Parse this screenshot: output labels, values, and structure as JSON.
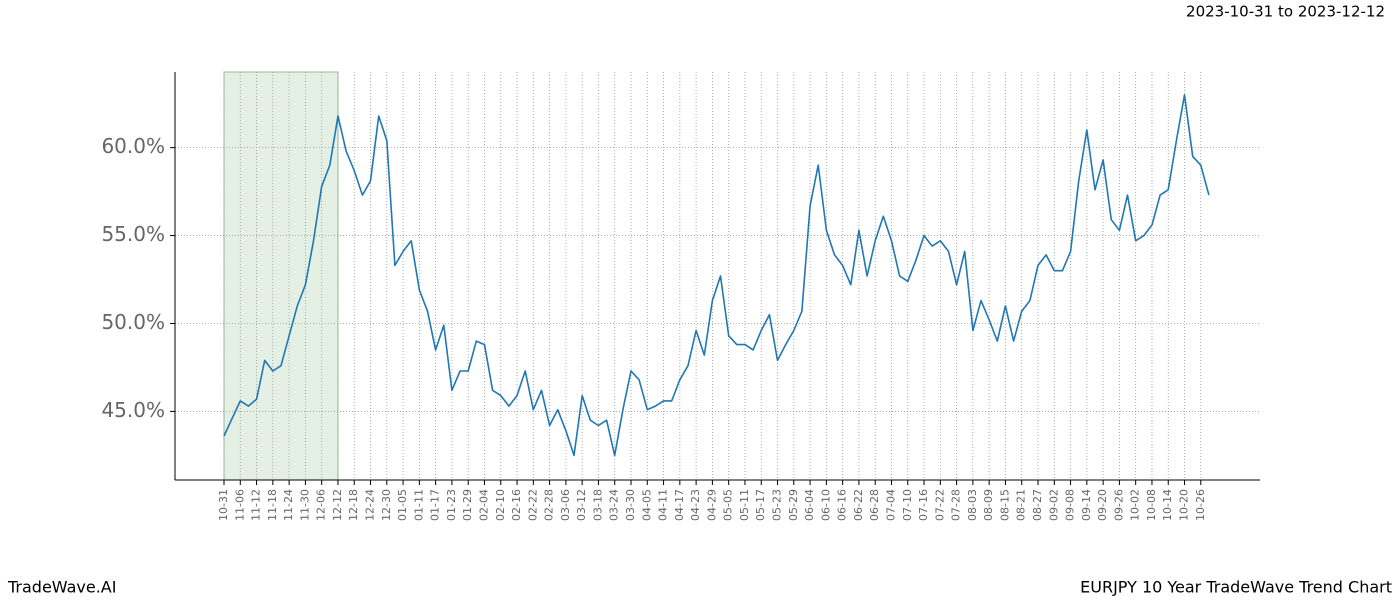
{
  "chart_data": {
    "type": "line",
    "title": "2023-10-31 to 2023-12-12",
    "footer_left": "TradeWave.AI",
    "footer_right": "EURJPY 10 Year TradeWave Trend Chart",
    "categories": [
      "10-31",
      null,
      "11-06",
      null,
      "11-12",
      null,
      "11-18",
      null,
      "11-24",
      null,
      "11-30",
      null,
      "12-06",
      null,
      "12-12",
      null,
      "12-18",
      null,
      "12-24",
      null,
      "12-30",
      null,
      "01-05",
      null,
      "01-11",
      null,
      "01-17",
      null,
      "01-23",
      null,
      "01-29",
      null,
      "02-04",
      null,
      "02-10",
      null,
      "02-16",
      null,
      "02-22",
      null,
      "02-28",
      null,
      "03-06",
      null,
      "03-12",
      null,
      "03-18",
      null,
      "03-24",
      null,
      "03-30",
      null,
      "04-05",
      null,
      "04-11",
      null,
      "04-17",
      null,
      "04-23",
      null,
      "04-29",
      null,
      "05-05",
      null,
      "05-11",
      null,
      "05-17",
      null,
      "05-23",
      null,
      "05-29",
      null,
      "06-04",
      null,
      "06-10",
      null,
      "06-16",
      null,
      "06-22",
      null,
      "06-28",
      null,
      "07-04",
      null,
      "07-10",
      null,
      "07-16",
      null,
      "07-22",
      null,
      "07-28",
      null,
      "08-03",
      null,
      "08-09",
      null,
      "08-15",
      null,
      "08-21",
      null,
      "08-27",
      null,
      "09-02",
      null,
      "09-08",
      null,
      "09-14",
      null,
      "09-20",
      null,
      "09-26",
      null,
      "10-02",
      null,
      "10-08",
      null,
      "10-14",
      null,
      "10-20",
      null,
      "10-26",
      null
    ],
    "values": [
      43.6,
      44.6,
      45.6,
      45.3,
      45.7,
      47.9,
      47.3,
      47.6,
      49.3,
      51.0,
      52.2,
      54.7,
      57.8,
      59.0,
      61.8,
      59.8,
      58.7,
      57.3,
      58.1,
      61.8,
      60.4,
      53.3,
      54.1,
      54.7,
      51.9,
      50.7,
      48.5,
      49.9,
      46.2,
      47.3,
      47.3,
      49.0,
      48.8,
      46.2,
      45.9,
      45.3,
      45.9,
      47.3,
      45.1,
      46.2,
      44.2,
      45.1,
      43.9,
      42.5,
      45.9,
      44.5,
      44.2,
      44.5,
      42.5,
      45.1,
      47.3,
      46.8,
      45.1,
      45.3,
      45.6,
      45.6,
      46.8,
      47.6,
      49.6,
      48.2,
      51.3,
      52.7,
      49.3,
      48.8,
      48.8,
      48.5,
      49.6,
      50.5,
      47.9,
      48.8,
      49.6,
      50.7,
      56.7,
      59.0,
      55.3,
      53.9,
      53.3,
      52.2,
      55.3,
      52.7,
      54.7,
      56.1,
      54.7,
      52.7,
      52.4,
      53.6,
      55.0,
      54.4,
      54.7,
      54.1,
      52.2,
      54.1,
      49.6,
      51.3,
      50.2,
      49.0,
      51.0,
      49.0,
      50.7,
      51.3,
      53.3,
      53.9,
      53.0,
      53.0,
      54.1,
      58.1,
      61.0,
      57.6,
      59.3,
      55.9,
      55.3,
      57.3,
      54.7,
      55.0,
      55.6,
      57.3,
      57.6,
      60.4,
      63.0,
      59.5,
      59.0,
      57.3
    ],
    "color": "#1f77b4",
    "shade": {
      "from": "10-31",
      "to": "12-12",
      "color": "#e5f0e5"
    },
    "ylim": [
      41.1,
      64.3
    ],
    "yticks": [
      {
        "value": 45,
        "label": "45.0%"
      },
      {
        "value": 50,
        "label": "50.0%"
      },
      {
        "value": 55,
        "label": "55.0%"
      },
      {
        "value": 60,
        "label": "60.0%"
      }
    ],
    "grid": true
  }
}
